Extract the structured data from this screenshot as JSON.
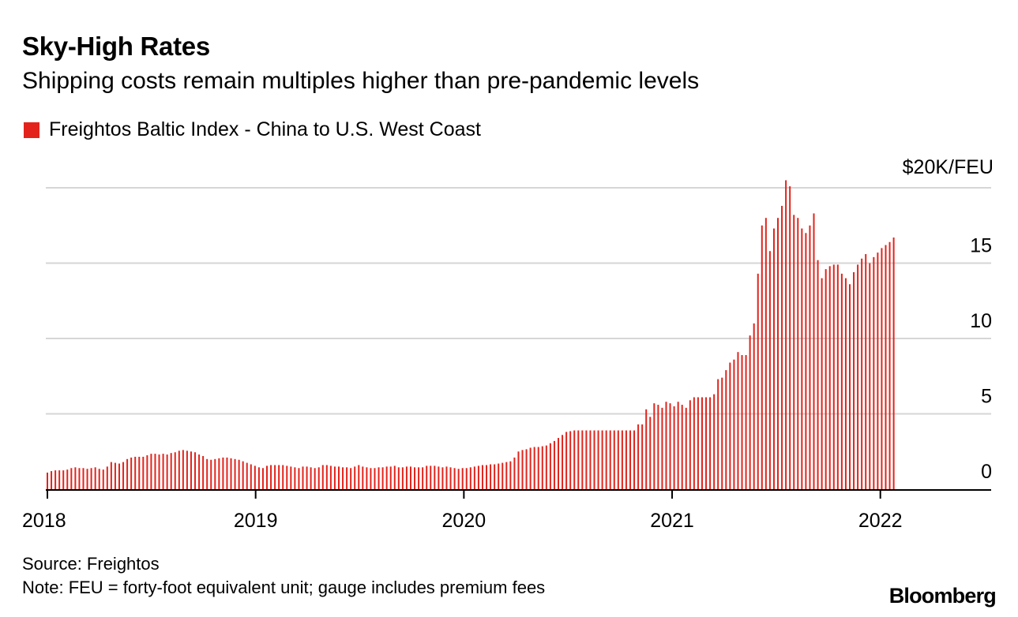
{
  "header": {
    "title": "Sky-High Rates",
    "subtitle": "Shipping costs remain multiples higher than pre-pandemic levels"
  },
  "legend": {
    "label": "Freightos Baltic Index - China to U.S. West Coast",
    "color": "#e3231b"
  },
  "footer": {
    "source": "Source: Freightos",
    "note": "Note: FEU = forty-foot equivalent unit; gauge includes premium fees",
    "brand": "Bloomberg"
  },
  "chart_data": {
    "type": "bar",
    "title": "Sky-High Rates",
    "xlabel": "",
    "ylabel": "",
    "unit_label": "$20K/FEU",
    "ylim": [
      0,
      20000
    ],
    "y_ticks": [
      0,
      5000,
      10000,
      15000
    ],
    "y_tick_labels": [
      "0",
      "5",
      "10",
      "15"
    ],
    "x_ticks": [
      "2018",
      "2019",
      "2020",
      "2021",
      "2022"
    ],
    "x_tick_dates": [
      2018.0,
      2019.0,
      2020.0,
      2021.0,
      2022.0
    ],
    "x_range": [
      2018.0,
      2022.35
    ],
    "bar_color": "#e3231b",
    "grid": true,
    "series": [
      {
        "name": "Freightos Baltic Index - China to U.S. West Coast",
        "frequency": "weekly",
        "start": 2018.0,
        "step_years": 0.01917,
        "values": [
          1100,
          1200,
          1250,
          1250,
          1250,
          1300,
          1400,
          1450,
          1400,
          1400,
          1350,
          1400,
          1450,
          1350,
          1300,
          1500,
          1800,
          1750,
          1700,
          1800,
          2000,
          2100,
          2150,
          2150,
          2150,
          2250,
          2350,
          2350,
          2300,
          2350,
          2300,
          2400,
          2450,
          2550,
          2600,
          2550,
          2500,
          2450,
          2300,
          2200,
          2000,
          1950,
          2000,
          2050,
          2100,
          2100,
          2050,
          2000,
          1950,
          1850,
          1750,
          1650,
          1550,
          1450,
          1400,
          1550,
          1600,
          1600,
          1600,
          1600,
          1550,
          1500,
          1450,
          1400,
          1500,
          1500,
          1450,
          1400,
          1450,
          1600,
          1600,
          1550,
          1500,
          1500,
          1450,
          1450,
          1400,
          1500,
          1600,
          1500,
          1450,
          1400,
          1400,
          1450,
          1450,
          1500,
          1500,
          1550,
          1450,
          1450,
          1500,
          1500,
          1450,
          1450,
          1450,
          1550,
          1550,
          1550,
          1500,
          1450,
          1500,
          1450,
          1400,
          1350,
          1400,
          1400,
          1450,
          1500,
          1550,
          1600,
          1600,
          1650,
          1650,
          1700,
          1750,
          1800,
          1850,
          2100,
          2500,
          2600,
          2650,
          2750,
          2800,
          2800,
          2850,
          2900,
          3050,
          3200,
          3400,
          3600,
          3800,
          3850,
          3900,
          3900,
          3900,
          3900,
          3900,
          3900,
          3900,
          3900,
          3900,
          3900,
          3900,
          3900,
          3900,
          3900,
          3900,
          3900,
          4300,
          4300,
          5300,
          4800,
          5700,
          5600,
          5400,
          5800,
          5700,
          5500,
          5800,
          5600,
          5400,
          5900,
          6100,
          6100,
          6100,
          6100,
          6100,
          6300,
          7300,
          7400,
          7900,
          8400,
          8600,
          9100,
          8900,
          8900,
          10200,
          11000,
          14300,
          17500,
          18000,
          15800,
          17300,
          18000,
          18800,
          20500,
          20100,
          18200,
          18000,
          17300,
          17000,
          17500,
          18300,
          15200,
          14000,
          14600,
          14800,
          14900,
          14900,
          14300,
          14000,
          13600,
          14400,
          14900,
          15300,
          15600,
          15000,
          15400,
          15700,
          16000,
          16200,
          16400,
          16700
        ]
      }
    ]
  }
}
